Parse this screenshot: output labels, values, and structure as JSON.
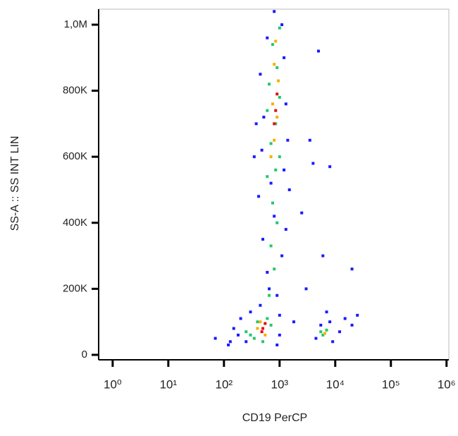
{
  "chart_data": {
    "type": "scatter",
    "x_label": "CD19 PerCP",
    "y_label": "SS-A :: SS INT LIN",
    "xscale": "log",
    "xlim": [
      0.56,
      1100000
    ],
    "ylim": [
      -15000,
      1047000
    ],
    "xticks": [
      {
        "value": 1,
        "label": "10⁰"
      },
      {
        "value": 10,
        "label": "10¹"
      },
      {
        "value": 100,
        "label": "10²"
      },
      {
        "value": 1000,
        "label": "10³"
      },
      {
        "value": 10000,
        "label": "10⁴"
      },
      {
        "value": 100000,
        "label": "10⁵"
      },
      {
        "value": 1000000,
        "label": "10⁶"
      }
    ],
    "yticks": [
      0,
      {
        "value": 200000,
        "label": "200K"
      },
      {
        "value": 400000,
        "label": "400K"
      },
      {
        "value": 600000,
        "label": "600K"
      },
      {
        "value": 800000,
        "label": "800K"
      },
      {
        "value": 1000000,
        "label": "1,0M"
      }
    ],
    "grid": false,
    "series": [
      {
        "color": "#1a1aff",
        "x": [
          450,
          900,
          600,
          1100,
          500,
          800,
          1300,
          420,
          700,
          1200,
          480,
          1400,
          520,
          1300,
          450,
          1200,
          600,
          1100,
          800,
          380,
          1500,
          650,
          1000,
          350,
          70,
          120,
          150,
          200,
          250,
          300,
          180,
          1000,
          900,
          130,
          4500,
          5500,
          8000,
          12000,
          15000,
          7000,
          9000,
          20000,
          3000,
          6000,
          4000,
          8000,
          5000,
          2500,
          20000,
          3500,
          25000,
          1800
        ],
        "values": [
          150000,
          180000,
          250000,
          300000,
          350000,
          420000,
          380000,
          480000,
          520000,
          560000,
          620000,
          650000,
          720000,
          760000,
          850000,
          900000,
          960000,
          1000000,
          1040000,
          700000,
          500000,
          200000,
          120000,
          600000,
          50000,
          30000,
          80000,
          110000,
          40000,
          130000,
          60000,
          60000,
          30000,
          40000,
          50000,
          90000,
          100000,
          70000,
          110000,
          130000,
          40000,
          90000,
          200000,
          300000,
          580000,
          570000,
          920000,
          430000,
          260000,
          650000,
          120000,
          100000
        ]
      },
      {
        "color": "#22c86a",
        "x": [
          650,
          800,
          700,
          900,
          750,
          600,
          1000,
          700,
          850,
          1000,
          650,
          900,
          750,
          1000,
          600,
          850,
          300,
          400,
          500,
          250,
          700,
          350,
          600,
          6000,
          7000,
          5500
        ],
        "values": [
          180000,
          260000,
          330000,
          400000,
          460000,
          540000,
          600000,
          640000,
          700000,
          780000,
          820000,
          870000,
          940000,
          990000,
          740000,
          560000,
          60000,
          100000,
          40000,
          70000,
          90000,
          50000,
          110000,
          60000,
          75000,
          70000
        ]
      },
      {
        "color": "#f5b000",
        "x": [
          800,
          900,
          750,
          950,
          800,
          700,
          850,
          400,
          550,
          450,
          6500
        ],
        "values": [
          650000,
          720000,
          760000,
          830000,
          880000,
          600000,
          950000,
          80000,
          60000,
          100000,
          65000
        ]
      },
      {
        "color": "#e01010",
        "x": [
          850,
          900,
          800,
          500,
          480,
          550
        ],
        "values": [
          740000,
          790000,
          700000,
          80000,
          70000,
          95000
        ]
      }
    ]
  }
}
